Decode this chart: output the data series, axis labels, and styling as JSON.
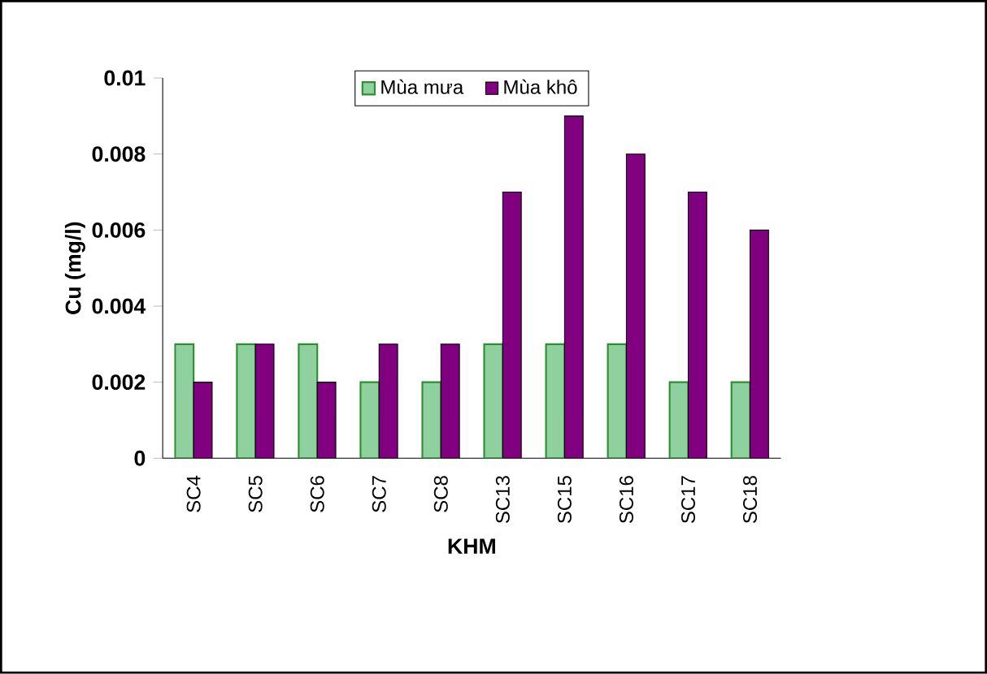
{
  "chart_data": {
    "type": "bar",
    "xlabel": "KHM",
    "ylabel": "Cu (mg/l)",
    "categories": [
      "SC4",
      "SC5",
      "SC6",
      "SC7",
      "SC8",
      "SC13",
      "SC15",
      "SC16",
      "SC17",
      "SC18"
    ],
    "series": [
      {
        "name": "Mùa mưa",
        "color": "#8fd19e",
        "values": [
          0.003,
          0.003,
          0.003,
          0.002,
          0.002,
          0.003,
          0.003,
          0.003,
          0.002,
          0.002
        ]
      },
      {
        "name": "Mùa khô",
        "color": "#800080",
        "values": [
          0.002,
          0.003,
          0.002,
          0.003,
          0.003,
          0.007,
          0.009,
          0.008,
          0.007,
          0.006
        ]
      }
    ],
    "ylim": [
      0,
      0.01
    ],
    "yticks": [
      0,
      0.002,
      0.004,
      0.006,
      0.008,
      0.01
    ],
    "grid": false,
    "legend": "top"
  }
}
